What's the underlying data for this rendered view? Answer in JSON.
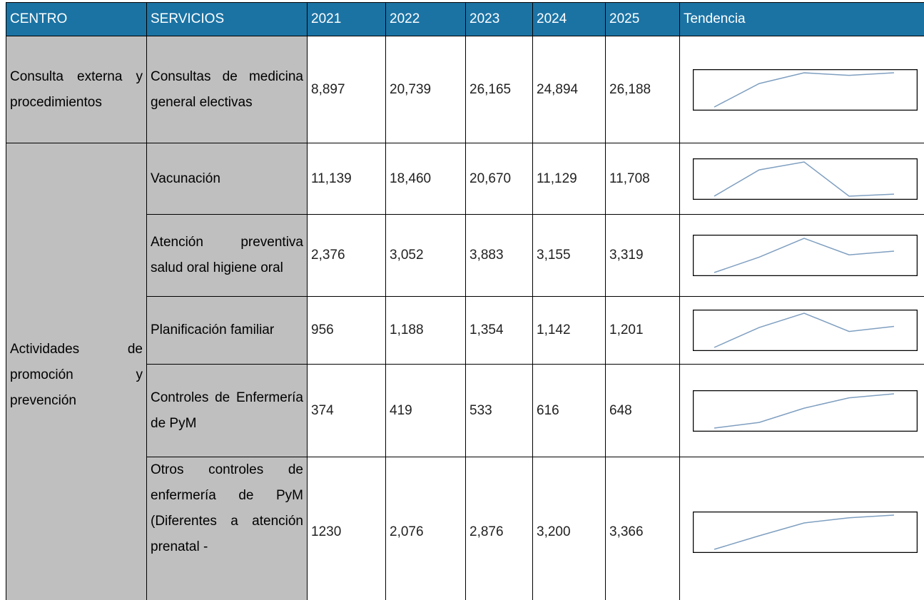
{
  "header": [
    "CENTRO",
    "SERVICIOS",
    "2021",
    "2022",
    "2023",
    "2024",
    "2025",
    "Tendencia"
  ],
  "groups": [
    {
      "centro": "Consulta externa y procedimientos",
      "rows": [
        {
          "servicio": "Consultas de medicina general electivas",
          "values": [
            8897,
            20739,
            26165,
            24894,
            26188
          ],
          "value_labels": [
            "8,897",
            "20,739",
            "26,165",
            "24,894",
            "26,188"
          ]
        }
      ]
    },
    {
      "centro": "Actividades de promoción y prevención",
      "rows": [
        {
          "servicio": "Vacunación",
          "values": [
            11139,
            18460,
            20670,
            11129,
            11708
          ],
          "value_labels": [
            "11,139",
            "18,460",
            "20,670",
            "11,129",
            "11,708"
          ]
        },
        {
          "servicio": "Atención preventiva salud oral higiene oral",
          "values": [
            2376,
            3052,
            3883,
            3155,
            3319
          ],
          "value_labels": [
            "2,376",
            "3,052",
            "3,883",
            "3,155",
            "3,319"
          ]
        },
        {
          "servicio": "Planificación familiar",
          "values": [
            956,
            1188,
            1354,
            1142,
            1201
          ],
          "value_labels": [
            "956",
            "1,188",
            "1,354",
            "1,142",
            "1,201"
          ]
        },
        {
          "servicio": "Controles de Enfermería de PyM",
          "values": [
            374,
            419,
            533,
            616,
            648
          ],
          "value_labels": [
            "374",
            "419",
            "533",
            "616",
            "648"
          ]
        },
        {
          "servicio": "Otros controles de enfermería de PyM (Diferentes a atención prenatal -",
          "values": [
            1230,
            2076,
            2876,
            3200,
            3366
          ],
          "value_labels": [
            "1230",
            "2,076",
            "2,876",
            "3,200",
            "3,366"
          ]
        }
      ]
    }
  ]
}
